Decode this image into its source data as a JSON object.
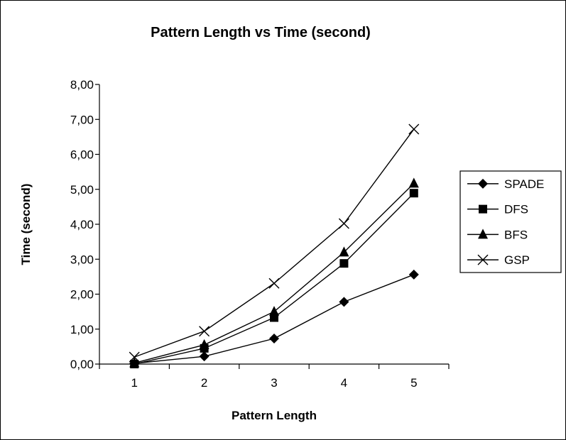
{
  "chart_data": {
    "type": "line",
    "title": "Pattern Length vs Time (second)",
    "xlabel": "Pattern Length",
    "ylabel": "Time (second)",
    "categories": [
      "1",
      "2",
      "3",
      "4",
      "5"
    ],
    "ylim": [
      0,
      8
    ],
    "yticks": [
      "0,00",
      "1,00",
      "2,00",
      "3,00",
      "4,00",
      "5,00",
      "6,00",
      "7,00",
      "8,00"
    ],
    "grid": false,
    "legend_position": "right",
    "series": [
      {
        "name": "SPADE",
        "marker": "diamond",
        "values": [
          0.02,
          0.22,
          0.73,
          1.78,
          2.56
        ]
      },
      {
        "name": "DFS",
        "marker": "square",
        "values": [
          0.0,
          0.45,
          1.33,
          2.88,
          4.89
        ]
      },
      {
        "name": "BFS",
        "marker": "triangle",
        "values": [
          0.03,
          0.55,
          1.5,
          3.2,
          5.17
        ]
      },
      {
        "name": "GSP",
        "marker": "x",
        "values": [
          0.2,
          0.94,
          2.31,
          4.02,
          6.72
        ]
      }
    ]
  }
}
